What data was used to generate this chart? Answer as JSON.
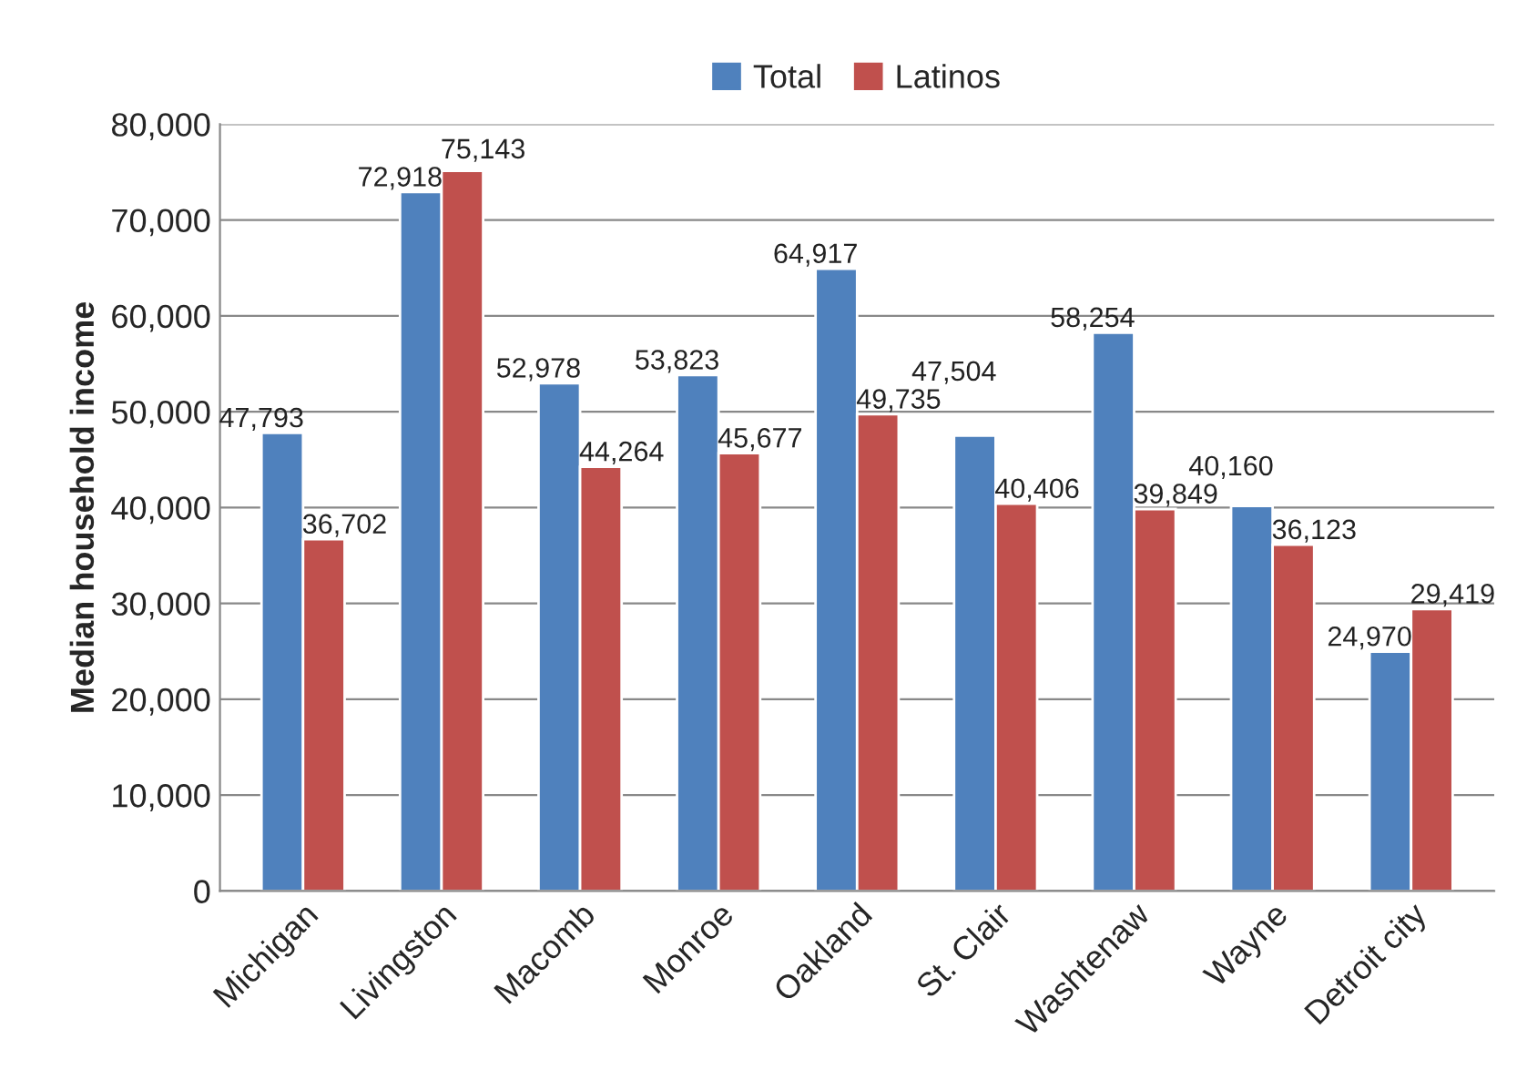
{
  "chart_data": {
    "type": "bar",
    "ylabel": "Median household income",
    "categories": [
      "Michigan",
      "Livingston",
      "Macomb",
      "Monroe",
      "Oakland",
      "St. Clair",
      "Washtenaw",
      "Wayne",
      "Detroit city"
    ],
    "series": [
      {
        "name": "Total",
        "color": "#4f81bd",
        "values": [
          47793,
          72918,
          52978,
          53823,
          64917,
          47504,
          58254,
          40160,
          24970
        ],
        "value_labels": [
          "47,793",
          "72,918",
          "52,978",
          "53,823",
          "64,917",
          "47,504",
          "58,254",
          "40,160",
          "24,970"
        ]
      },
      {
        "name": "Latinos",
        "color": "#c0504d",
        "values": [
          36702,
          75143,
          44264,
          45677,
          49735,
          40406,
          39849,
          36123,
          29419
        ],
        "value_labels": [
          "36,702",
          "75,143",
          "44,264",
          "45,677",
          "49,735",
          "40,406",
          "39,849",
          "36,123",
          "29,419"
        ]
      }
    ],
    "ylim": [
      0,
      80000
    ],
    "yticks": [
      0,
      {
        "value": 10000,
        "label": "10,000"
      },
      {
        "value": 20000,
        "label": "20,000"
      },
      {
        "value": 30000,
        "label": "30,000"
      },
      {
        "value": 40000,
        "label": "40,000"
      },
      {
        "value": 50000,
        "label": "50,000"
      },
      {
        "value": 60000,
        "label": "60,000"
      },
      {
        "value": 70000,
        "label": "70,000"
      },
      {
        "value": 80000,
        "label": "80,000"
      }
    ],
    "grid": "y",
    "legend": "top"
  }
}
